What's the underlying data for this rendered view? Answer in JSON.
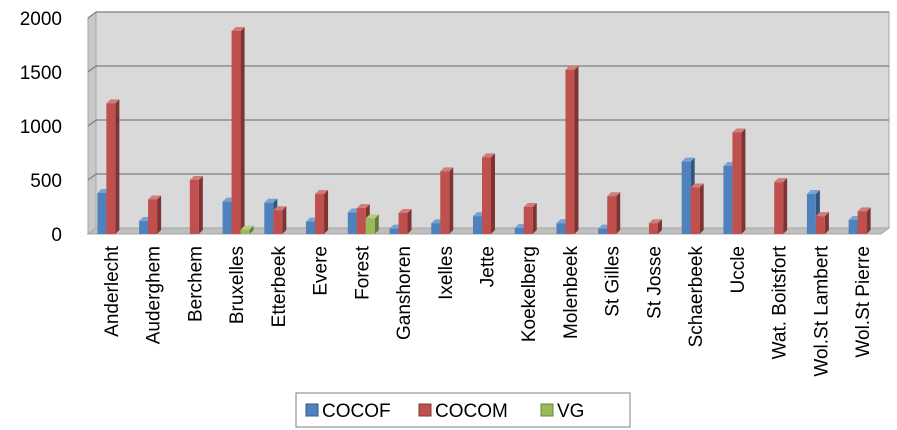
{
  "chart_data": {
    "type": "bar",
    "categories": [
      "Anderlecht",
      "Auderghem",
      "Berchem",
      "Bruxelles",
      "Etterbeek",
      "Evere",
      "Forest",
      "Ganshoren",
      "Ixelles",
      "Jette",
      "Koekelberg",
      "Molenbeek",
      "St Gilles",
      "St Josse",
      "Schaerbeek",
      "Uccle",
      "Wat. Boitsfort",
      "Wol.St Lambert",
      "Wol.St Pierre"
    ],
    "series": [
      {
        "name": "COCOF",
        "color": "#4F81BD",
        "values": [
          380,
          120,
          0,
          300,
          290,
          115,
          200,
          50,
          100,
          165,
          55,
          100,
          50,
          0,
          670,
          630,
          0,
          370,
          130
        ]
      },
      {
        "name": "COCOM",
        "color": "#C0504D",
        "values": [
          1210,
          320,
          500,
          1880,
          220,
          370,
          240,
          195,
          580,
          710,
          250,
          1520,
          350,
          100,
          430,
          940,
          480,
          165,
          210
        ]
      },
      {
        "name": "VG",
        "color": "#9BBB59",
        "values": [
          0,
          0,
          0,
          40,
          0,
          0,
          145,
          0,
          0,
          0,
          0,
          0,
          0,
          0,
          0,
          0,
          0,
          0,
          0
        ]
      }
    ],
    "yticks": [
      "0",
      "500",
      "1000",
      "1500",
      "2000"
    ],
    "ylim": [
      0,
      2000
    ],
    "grid": true,
    "legend": "bottom",
    "style": "3d-column"
  }
}
